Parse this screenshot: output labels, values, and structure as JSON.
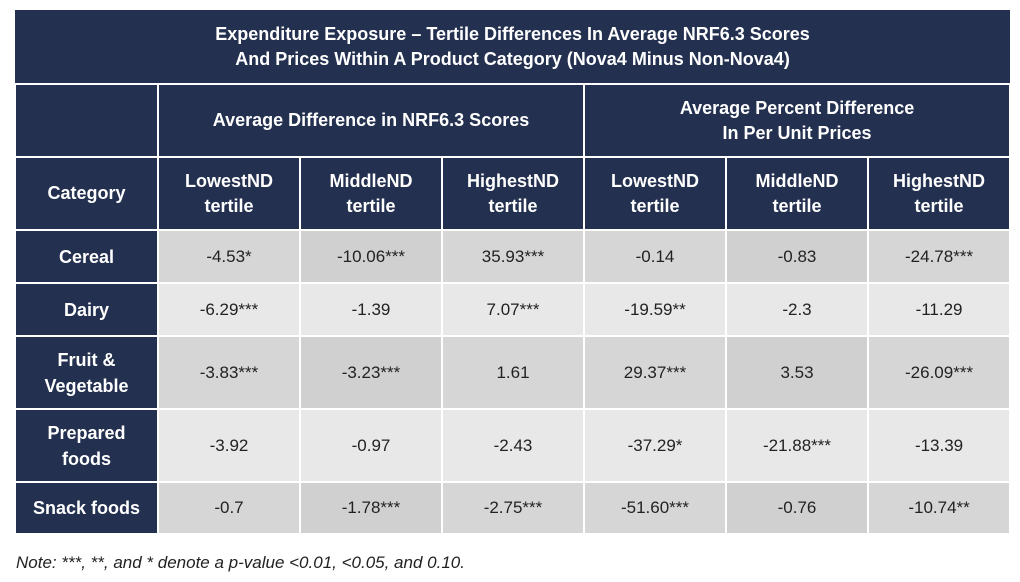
{
  "title": {
    "line1": "Expenditure Exposure – Tertile Differences In Average NRF6.3 Scores",
    "line2": "And Prices Within A Product Category (Nova4 Minus Non-Nova4)"
  },
  "groups": {
    "nrf": "Average Difference in NRF6.3 Scores",
    "price_line1": "Average Percent Difference",
    "price_line2": "In Per Unit Prices"
  },
  "columns": {
    "category": "Category",
    "headers": [
      {
        "line1": "LowestND",
        "line2": "tertile"
      },
      {
        "line1": "MiddleND",
        "line2": "tertile"
      },
      {
        "line1": "HighestND",
        "line2": "tertile"
      },
      {
        "line1": "LowestND",
        "line2": "tertile"
      },
      {
        "line1": "MiddleND",
        "line2": "tertile"
      },
      {
        "line1": "HighestND",
        "line2": "tertile"
      }
    ]
  },
  "rows": [
    {
      "label1": "Cereal",
      "label2": "",
      "values": [
        "-4.53*",
        "-10.06***",
        "35.93***",
        "-0.14",
        "-0.83",
        "-24.78***"
      ]
    },
    {
      "label1": "Dairy",
      "label2": "",
      "values": [
        "-6.29***",
        "-1.39",
        "7.07***",
        "-19.59**",
        "-2.3",
        "-11.29"
      ]
    },
    {
      "label1": "Fruit &",
      "label2": "Vegetable",
      "values": [
        "-3.83***",
        "-3.23***",
        "1.61",
        "29.37***",
        "3.53",
        "-26.09***"
      ]
    },
    {
      "label1": "Prepared",
      "label2": "foods",
      "values": [
        "-3.92",
        "-0.97",
        "-2.43",
        "-37.29*",
        "-21.88***",
        "-13.39"
      ]
    },
    {
      "label1": "Snack foods",
      "label2": "",
      "values": [
        "-0.7",
        "-1.78***",
        "-2.75***",
        "-51.60***",
        "-0.76",
        "-10.74**"
      ]
    }
  ],
  "note": "Note: ***, **, and * denote a p-value <0.01, <0.05, and 0.10."
}
